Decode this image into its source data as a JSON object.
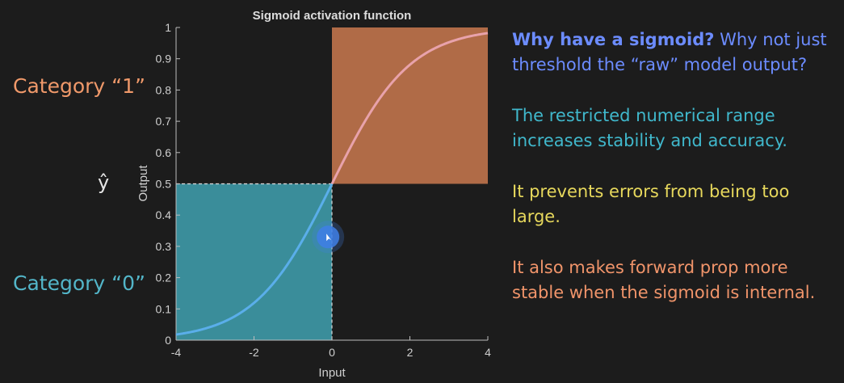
{
  "chart_data": {
    "type": "line",
    "title": "Sigmoid activation function",
    "xlabel": "Input",
    "ylabel": "Output",
    "xlim": [
      -4,
      4
    ],
    "ylim": [
      0,
      1
    ],
    "x_ticks": [
      "-4",
      "-2",
      "0",
      "2",
      "4"
    ],
    "y_ticks": [
      "0",
      "0.1",
      "0.2",
      "0.3",
      "0.4",
      "0.5",
      "0.6",
      "0.7",
      "0.8",
      "0.9",
      "1"
    ],
    "series": [
      {
        "function": "sigmoid",
        "x": [
          -4,
          -3,
          -2,
          -1,
          0,
          1,
          2,
          3,
          4
        ],
        "y": [
          0.018,
          0.047,
          0.119,
          0.269,
          0.5,
          0.731,
          0.881,
          0.953,
          0.982
        ]
      }
    ],
    "regions": [
      {
        "x": [
          -4,
          0
        ],
        "y": [
          0,
          0.5
        ],
        "color": "#3a8d9a"
      },
      {
        "x": [
          0,
          4
        ],
        "y": [
          0.5,
          1
        ],
        "color": "#b06b47"
      }
    ],
    "threshold": {
      "x": 0,
      "y": 0.5
    },
    "cursor_position": {
      "x": -0.1,
      "y": 0.33
    },
    "colors": {
      "curve_low": "#5aaeea",
      "curve_high": "#e8a2ab",
      "low_region": "#3a8d9a",
      "high_region": "#b06b47"
    }
  },
  "labels": {
    "category_one": "Category “1”",
    "category_zero": "Category “0”",
    "y_hat": "ŷ"
  },
  "notes": {
    "q_bold": "Why have a sigmoid?",
    "q_rest": " Why not just threshold the “raw” model output?",
    "point1": "The restricted numerical range increases stability and accuracy.",
    "point2": "It prevents errors from being too large.",
    "point3": "It also makes forward prop more stable when the sigmoid is internal."
  }
}
